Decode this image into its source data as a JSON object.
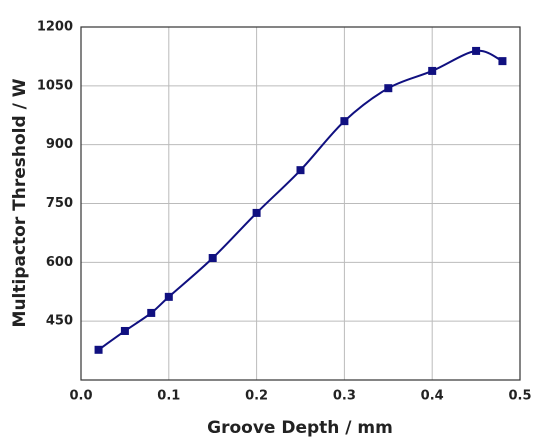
{
  "chart_data": {
    "type": "line",
    "xlabel": "Groove Depth / mm",
    "ylabel": "Multipactor Threshold / W",
    "x": [
      0.02,
      0.05,
      0.08,
      0.1,
      0.15,
      0.2,
      0.25,
      0.3,
      0.35,
      0.4,
      0.45,
      0.48
    ],
    "series": [
      {
        "color": "#101080",
        "values": [
          377,
          425,
          471,
          512,
          611,
          726,
          835,
          960,
          1044,
          1088,
          1139,
          1113
        ]
      }
    ],
    "xlim": [
      0,
      0.5
    ],
    "xticks": [
      {
        "value": 0,
        "label": "0.0"
      },
      0.1,
      0.2,
      0.3,
      0.4,
      0.5
    ],
    "ylim": [
      300,
      1200
    ],
    "yticks": [
      450,
      600,
      750,
      900,
      1050,
      1200
    ],
    "grid": true
  }
}
